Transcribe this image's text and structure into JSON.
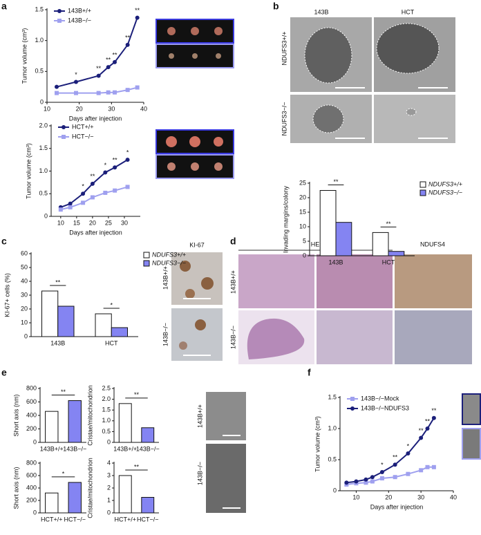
{
  "panel_labels": [
    "a",
    "b",
    "c",
    "d",
    "e",
    "f"
  ],
  "b_images": {
    "columns": [
      "143B",
      "HCT"
    ],
    "rows": [
      "NDUFS3+/+",
      "NDUFS3−/−"
    ]
  },
  "c_images": {
    "title": "KI-67",
    "rows": [
      "143B+/+",
      "143B−/−"
    ]
  },
  "d_images": {
    "columns": [
      "HE",
      "NDUFS4"
    ],
    "rows": [
      "143B+/+",
      "143B−/−"
    ]
  },
  "e_images": {
    "rows": [
      "143B+/+",
      "143B−/−"
    ]
  },
  "chart_data": [
    {
      "type": "line",
      "ylabel": "Tumor volume (cm³)",
      "xlabel": "Days after injection",
      "legend": "upper left",
      "x": [
        13,
        19,
        26,
        29,
        31,
        35,
        38
      ],
      "series": [
        {
          "name": "143B+/+",
          "color": "#1b1f7a",
          "marker": "circle",
          "values": [
            0.25,
            0.33,
            0.43,
            0.57,
            0.65,
            0.93,
            1.37
          ]
        },
        {
          "name": "143B−/−",
          "color": "#9fa0ef",
          "marker": "square",
          "values": [
            0.15,
            0.15,
            0.15,
            0.16,
            0.16,
            0.2,
            0.24
          ]
        }
      ],
      "annotations": [
        null,
        "*",
        "**",
        "**",
        "**",
        "**",
        "**"
      ],
      "xlim": [
        10,
        40
      ],
      "xticks": [
        10,
        20,
        30,
        40
      ],
      "ylim": [
        0,
        1.5
      ],
      "yticks": [
        0,
        0.5,
        {
          "value": 1,
          "label": "1.0"
        },
        1.5
      ]
    },
    {
      "type": "line",
      "ylabel": "Tumor volume (cm³)",
      "xlabel": "Days after injection",
      "legend": "upper left",
      "x": [
        10,
        13,
        17,
        20,
        24,
        27,
        31
      ],
      "series": [
        {
          "name": "HCT+/+",
          "color": "#1b1f7a",
          "marker": "circle",
          "values": [
            0.2,
            0.28,
            0.5,
            0.72,
            0.97,
            1.08,
            1.25
          ]
        },
        {
          "name": "HCT−/−",
          "color": "#9fa0ef",
          "marker": "square",
          "values": [
            0.15,
            0.2,
            0.3,
            0.42,
            0.52,
            0.57,
            0.65
          ]
        }
      ],
      "annotations": [
        null,
        null,
        "*",
        "**",
        "*",
        "**",
        "*"
      ],
      "xlim": [
        7,
        35
      ],
      "xticks": [
        10,
        15,
        20,
        25,
        30
      ],
      "ylim": [
        0,
        2
      ],
      "yticks": [
        0,
        0.5,
        {
          "value": 1,
          "label": "1.0"
        },
        1.5,
        {
          "value": 2,
          "label": "2.0"
        }
      ]
    },
    {
      "type": "bar",
      "ylabel": "Invading margins/colony",
      "legend": "outside right",
      "categories": [
        "143B",
        "HCT"
      ],
      "series": [
        {
          "name": "NDUFS3+/+",
          "color": "#ffffff",
          "values": [
            22.5,
            8
          ]
        },
        {
          "name": "NDUFS3−/−",
          "color": "#8484f2",
          "values": [
            11.5,
            1.5
          ]
        }
      ],
      "annotations": [
        "**",
        "**"
      ],
      "ylim": [
        0,
        25
      ],
      "yticks": [
        0,
        5,
        10,
        15,
        20,
        25
      ]
    },
    {
      "type": "bar",
      "ylabel": "KI-67+ cells (%)",
      "legend": "outside right",
      "categories": [
        "143B",
        "HCT"
      ],
      "series": [
        {
          "name": "NDUFS3+/+",
          "color": "#ffffff",
          "values": [
            33,
            16.5
          ]
        },
        {
          "name": "NDUFS3−/−",
          "color": "#8484f2",
          "values": [
            22,
            6.5
          ]
        }
      ],
      "annotations": [
        "**",
        "*"
      ],
      "ylim": [
        0,
        60
      ],
      "yticks": [
        0,
        10,
        20,
        30,
        40,
        50,
        60
      ]
    },
    {
      "type": "bar",
      "ylabel": "Short axis (nm)",
      "categories": [
        "143B+/+",
        "143B−/−"
      ],
      "values": [
        460,
        620
      ],
      "colors": [
        "#ffffff",
        "#8484f2"
      ],
      "annotation": "**",
      "ylim": [
        0,
        800
      ],
      "yticks": [
        0,
        200,
        400,
        600,
        800
      ]
    },
    {
      "type": "bar",
      "ylabel": "Cristae/mitochondrion",
      "categories": [
        "143B+/+",
        "143B−/−"
      ],
      "values": [
        1.8,
        0.68
      ],
      "colors": [
        "#ffffff",
        "#8484f2"
      ],
      "annotation": "**",
      "ylim": [
        0,
        2.5
      ],
      "yticks": [
        0,
        0.5,
        {
          "value": 1,
          "label": "1.0"
        },
        1.5,
        {
          "value": 2,
          "label": "2.0"
        },
        2.5
      ]
    },
    {
      "type": "bar",
      "ylabel": "Short axis (nm)",
      "categories": [
        "HCT+/+",
        "HCT−/−"
      ],
      "values": [
        320,
        490
      ],
      "colors": [
        "#ffffff",
        "#8484f2"
      ],
      "annotation": "*",
      "ylim": [
        0,
        800
      ],
      "yticks": [
        0,
        200,
        400,
        600,
        800
      ]
    },
    {
      "type": "bar",
      "ylabel": "Cristae/mitochondrion",
      "categories": [
        "HCT+/+",
        "HCT−/−"
      ],
      "values": [
        3.0,
        1.25
      ],
      "colors": [
        "#ffffff",
        "#8484f2"
      ],
      "annotation": "**",
      "ylim": [
        0,
        4
      ],
      "yticks": [
        0,
        1,
        2,
        3,
        4
      ]
    },
    {
      "type": "line",
      "ylabel": "Tumor volume (cm³)",
      "xlabel": "Days after injection",
      "legend": "upper left",
      "x": [
        7,
        10,
        13,
        15,
        18,
        22,
        26,
        30,
        32,
        34
      ],
      "series": [
        {
          "name": "143B−/−Mock",
          "color": "#9fa0ef",
          "marker": "square",
          "values": [
            0.1,
            0.12,
            0.13,
            0.15,
            0.2,
            0.22,
            0.27,
            0.33,
            0.38,
            0.38
          ]
        },
        {
          "name": "143B−/−NDUFS3",
          "color": "#1b1f7a",
          "marker": "circle",
          "values": [
            0.13,
            0.15,
            0.18,
            0.22,
            0.3,
            0.42,
            0.6,
            0.85,
            1.0,
            1.17
          ]
        }
      ],
      "annotations": [
        null,
        null,
        null,
        null,
        "*",
        "**",
        "*",
        "**",
        "**",
        "**"
      ],
      "xlim": [
        5,
        40
      ],
      "xticks": [
        10,
        20,
        30,
        40
      ],
      "ylim": [
        0,
        1.5
      ],
      "yticks": [
        0,
        0.5,
        {
          "value": 1,
          "label": "1.0"
        },
        1.5
      ]
    }
  ]
}
